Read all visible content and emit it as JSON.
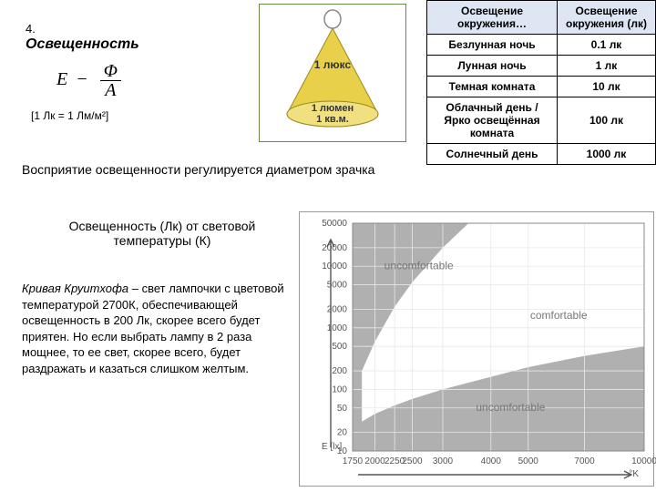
{
  "section": {
    "number": "4.",
    "title": "Освещенность"
  },
  "formula": {
    "E": "E",
    "dash": "−",
    "num": "Φ",
    "den": "A"
  },
  "unit_note": "[1 Лк = 1 Лм/м²]",
  "lamp": {
    "top_label": "1 люкс",
    "base_label1": "1 люмен",
    "base_label2": "1 кв.м.",
    "cone_fill": "#e8d04a",
    "cone_stroke": "#9a8a20",
    "base_fill": "#f0e080",
    "bulb_stroke": "#888"
  },
  "illum_table": {
    "head1": "Освещение окружения…",
    "head2": "Освещение окружения (лк)",
    "rows": [
      {
        "label": "Безлунная ночь",
        "value": "0.1 лк"
      },
      {
        "label": "Лунная ночь",
        "value": "1 лк"
      },
      {
        "label": "Темная комната",
        "value": "10 лк"
      },
      {
        "label": "Облачный день / Ярко освещённая комната",
        "value": "100 лк"
      },
      {
        "label": "Солнечный день",
        "value": "1000 лк"
      }
    ]
  },
  "text1": "Восприятие освещенности регулируется диаметром зрачка",
  "text2": "Освещенность (Лк) от световой температуры (К)",
  "text3_lead": "Кривая Круитхофа",
  "text3_rest": " – свет лампочки с цветовой температурой 2700К, обеспечивающей освещенность в 200 Лк, скорее всего будет приятен. Но если выбрать лампу в 2 раза мощнее, то ее свет, скорее всего, будет раздражать и казаться слишком желтым.",
  "chart": {
    "bg": "#ffffff",
    "grid_bg": "#b0b0b0",
    "comfort_fill": "#ffffff",
    "grid_line": "#e8e8e8",
    "axis_color": "#555",
    "y_ticks": [
      "50000",
      "20000",
      "10000",
      "5000",
      "2000",
      "1000",
      "500",
      "200",
      "100",
      "50",
      "20",
      "10"
    ],
    "x_ticks": [
      "1750",
      "2000",
      "2250",
      "2500",
      "3000",
      "4000",
      "5000",
      "7000",
      "10000"
    ],
    "y_label": "E [lx]",
    "x_label": "°K",
    "region_labels": {
      "upper": "uncomfortable",
      "middle": "comfortable",
      "lower": "uncomfortable"
    }
  }
}
